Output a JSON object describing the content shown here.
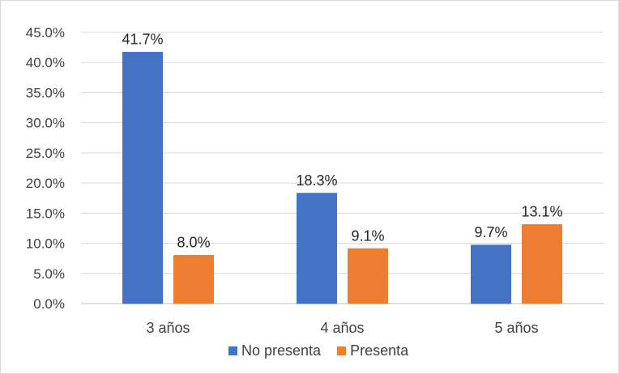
{
  "chart_data": {
    "type": "bar",
    "categories": [
      "3 años",
      "4 años",
      "5 años"
    ],
    "series": [
      {
        "name": "No presenta",
        "values": [
          41.7,
          18.3,
          9.7
        ],
        "color": "#4472C4",
        "labels": [
          "41.7%",
          "18.3%",
          "9.7%"
        ]
      },
      {
        "name": "Presenta",
        "values": [
          8.0,
          9.1,
          13.1
        ],
        "color": "#ED7D31",
        "labels": [
          "8.0%",
          "9.1%",
          "13.1%"
        ]
      }
    ],
    "title": "",
    "xlabel": "",
    "ylabel": "",
    "ylim": [
      0,
      45
    ],
    "y_ticks": [
      "0.0%",
      "5.0%",
      "10.0%",
      "15.0%",
      "20.0%",
      "25.0%",
      "30.0%",
      "35.0%",
      "40.0%",
      "45.0%"
    ],
    "grid": true,
    "legend_position": "bottom",
    "gridline_color": "#d9d9d9",
    "axis_color": "#bfbfbf"
  }
}
